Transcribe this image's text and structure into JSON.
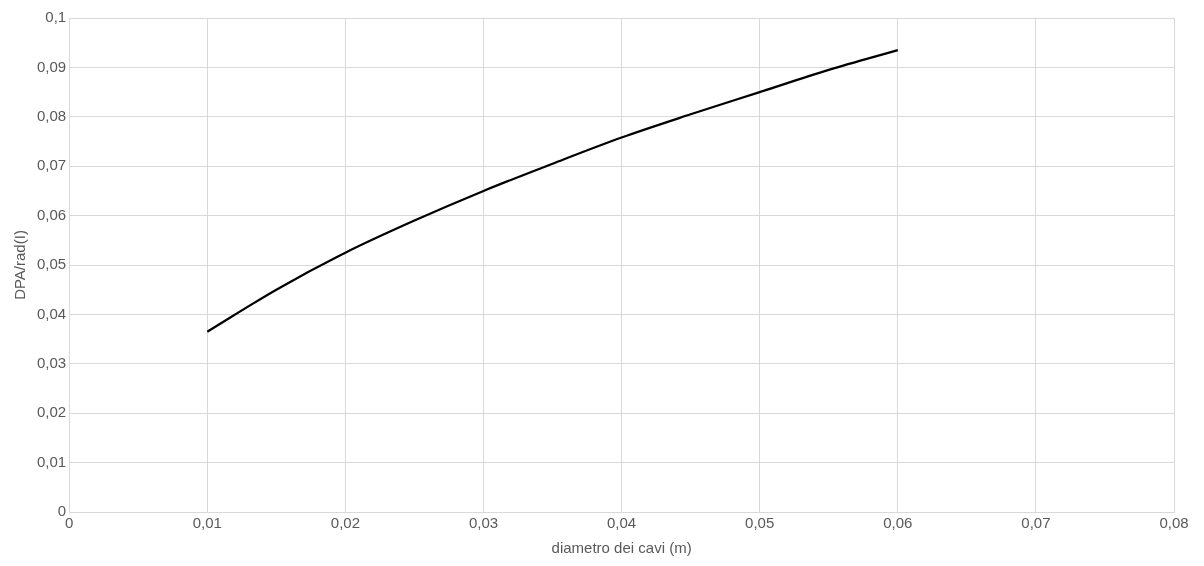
{
  "chart_data": {
    "type": "line",
    "xlabel": "diametro dei cavi (m)",
    "ylabel": "DPA/rad(I)",
    "xlim": [
      0,
      0.08
    ],
    "xticks": [
      0,
      {
        "value": 0.01,
        "label": "0,01"
      },
      {
        "value": 0.02,
        "label": "0,02"
      },
      {
        "value": 0.03,
        "label": "0,03"
      },
      {
        "value": 0.04,
        "label": "0,04"
      },
      {
        "value": 0.05,
        "label": "0,05"
      },
      {
        "value": 0.06,
        "label": "0,06"
      },
      {
        "value": 0.07,
        "label": "0,07"
      },
      {
        "value": 0.08,
        "label": "0,08"
      }
    ],
    "ylim": [
      0,
      0.1
    ],
    "yticks": [
      0,
      {
        "value": 0.01,
        "label": "0,01"
      },
      {
        "value": 0.02,
        "label": "0,02"
      },
      {
        "value": 0.03,
        "label": "0,03"
      },
      {
        "value": 0.04,
        "label": "0,04"
      },
      {
        "value": 0.05,
        "label": "0,05"
      },
      {
        "value": 0.06,
        "label": "0,06"
      },
      {
        "value": 0.07,
        "label": "0,07"
      },
      {
        "value": 0.08,
        "label": "0,08"
      },
      {
        "value": 0.09,
        "label": "0,09"
      },
      {
        "value": 0.1,
        "label": "0,1"
      }
    ],
    "grid": true,
    "legend": false,
    "marker": "none",
    "line_style": "solid",
    "series": [
      {
        "color": "#000000",
        "x": [
          0.01,
          0.015,
          0.02,
          0.025,
          0.03,
          0.035,
          0.04,
          0.045,
          0.05,
          0.055,
          0.06
        ],
        "values": [
          0.0365,
          0.045,
          0.0525,
          0.059,
          0.065,
          0.0705,
          0.0758,
          0.0805,
          0.085,
          0.0895,
          0.0935
        ]
      }
    ]
  }
}
